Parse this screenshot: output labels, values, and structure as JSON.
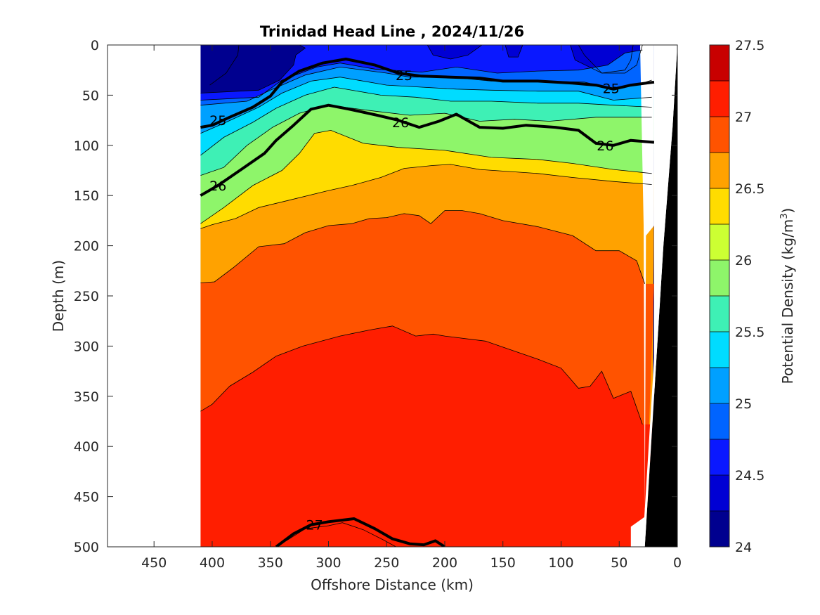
{
  "chart_data": {
    "type": "contour",
    "title": "Trinidad Head Line , 2024/11/26",
    "xlabel": "Offshore Distance (km)",
    "ylabel": "Depth (m)",
    "xlim": [
      490,
      0
    ],
    "ylim": [
      0,
      500
    ],
    "x_ticks": [
      "450",
      "400",
      "350",
      "300",
      "250",
      "200",
      "150",
      "100",
      "50",
      "0"
    ],
    "y_ticks": [
      "0",
      "50",
      "100",
      "150",
      "200",
      "250",
      "300",
      "350",
      "400",
      "450",
      "500"
    ],
    "colorbar": {
      "label_prefix": "Potential Density (kg/m",
      "label_sup": "3",
      "label_suffix": ")",
      "ticks": [
        "24",
        "24.5",
        "25",
        "25.5",
        "26",
        "26.5",
        "27",
        "27.5"
      ],
      "range": [
        24,
        27.5
      ],
      "levels": [
        {
          "from": 24.0,
          "to": 24.25,
          "color": "#00008f"
        },
        {
          "from": 24.25,
          "to": 24.5,
          "color": "#0000d4"
        },
        {
          "from": 24.5,
          "to": 24.75,
          "color": "#0a18ff"
        },
        {
          "from": 24.75,
          "to": 25.0,
          "color": "#0064ff"
        },
        {
          "from": 25.0,
          "to": 25.25,
          "color": "#00a0ff"
        },
        {
          "from": 25.25,
          "to": 25.5,
          "color": "#00dcff"
        },
        {
          "from": 25.5,
          "to": 25.75,
          "color": "#3ef0b5"
        },
        {
          "from": 25.75,
          "to": 26.0,
          "color": "#8ef56a"
        },
        {
          "from": 26.0,
          "to": 26.25,
          "color": "#ccff33"
        },
        {
          "from": 26.25,
          "to": 26.5,
          "color": "#ffdc00"
        },
        {
          "from": 26.5,
          "to": 26.75,
          "color": "#ffa200"
        },
        {
          "from": 26.75,
          "to": 27.0,
          "color": "#ff5300"
        },
        {
          "from": 27.0,
          "to": 27.25,
          "color": "#ff1e00"
        },
        {
          "from": 27.25,
          "to": 27.5,
          "color": "#c80000"
        }
      ]
    },
    "data_extent_km": [
      410,
      20
    ],
    "bottom_fill_color": "#000000",
    "contours": [
      {
        "level": 24.25,
        "points": [
          [
            402,
            40
          ],
          [
            388,
            28
          ],
          [
            378,
            10
          ],
          [
            377,
            0
          ]
        ]
      },
      {
        "level": 24.25,
        "points": [
          [
            85,
            0
          ],
          [
            80,
            10
          ],
          [
            65,
            28
          ],
          [
            45,
            25
          ],
          [
            40,
            15
          ],
          [
            38,
            0
          ]
        ]
      },
      {
        "level": 24.5,
        "points": [
          [
            410,
            48
          ],
          [
            360,
            45
          ],
          [
            342,
            35
          ],
          [
            330,
            20
          ],
          [
            328,
            10
          ],
          [
            320,
            3
          ],
          [
            325,
            0
          ]
        ]
      },
      {
        "level": 24.5,
        "points": [
          [
            215,
            0
          ],
          [
            210,
            10
          ],
          [
            195,
            14
          ],
          [
            180,
            10
          ],
          [
            168,
            0
          ]
        ]
      },
      {
        "level": 24.5,
        "points": [
          [
            148,
            0
          ],
          [
            145,
            12
          ],
          [
            137,
            12
          ],
          [
            133,
            0
          ]
        ]
      },
      {
        "level": 24.5,
        "points": [
          [
            92,
            0
          ],
          [
            88,
            15
          ],
          [
            65,
            28
          ],
          [
            45,
            28
          ],
          [
            35,
            20
          ],
          [
            30,
            0
          ]
        ]
      },
      {
        "level": 24.75,
        "points": [
          [
            410,
            55
          ],
          [
            360,
            52
          ],
          [
            340,
            35
          ],
          [
            310,
            22
          ],
          [
            290,
            18
          ],
          [
            260,
            24
          ],
          [
            220,
            27
          ],
          [
            190,
            22
          ],
          [
            155,
            28
          ],
          [
            120,
            26
          ],
          [
            85,
            25
          ],
          [
            60,
            20
          ],
          [
            45,
            8
          ],
          [
            30,
            5
          ]
        ]
      },
      {
        "level": 25.0,
        "points": [
          [
            410,
            60
          ],
          [
            370,
            56
          ],
          [
            350,
            45
          ],
          [
            320,
            30
          ],
          [
            290,
            22
          ],
          [
            250,
            28
          ],
          [
            230,
            32
          ],
          [
            195,
            32
          ],
          [
            160,
            36
          ],
          [
            120,
            36
          ],
          [
            80,
            37
          ],
          [
            55,
            44
          ],
          [
            30,
            38
          ],
          [
            22,
            35
          ]
        ]
      },
      {
        "level": 25.25,
        "points": [
          [
            410,
            88
          ],
          [
            390,
            78
          ],
          [
            360,
            62
          ],
          [
            340,
            48
          ],
          [
            315,
            36
          ],
          [
            290,
            32
          ],
          [
            250,
            40
          ],
          [
            220,
            42
          ],
          [
            190,
            44
          ],
          [
            160,
            45
          ],
          [
            120,
            46
          ],
          [
            85,
            46
          ],
          [
            55,
            55
          ],
          [
            22,
            52
          ]
        ]
      },
      {
        "level": 25.5,
        "points": [
          [
            410,
            110
          ],
          [
            390,
            92
          ],
          [
            365,
            77
          ],
          [
            345,
            63
          ],
          [
            320,
            50
          ],
          [
            295,
            42
          ],
          [
            255,
            50
          ],
          [
            225,
            52
          ],
          [
            195,
            56
          ],
          [
            160,
            56
          ],
          [
            120,
            58
          ],
          [
            85,
            58
          ],
          [
            55,
            60
          ],
          [
            22,
            62
          ]
        ]
      },
      {
        "level": 25.75,
        "points": [
          [
            410,
            130
          ],
          [
            390,
            122
          ],
          [
            370,
            100
          ],
          [
            348,
            82
          ],
          [
            325,
            68
          ],
          [
            300,
            60
          ],
          [
            260,
            66
          ],
          [
            230,
            70
          ],
          [
            200,
            68
          ],
          [
            170,
            76
          ],
          [
            140,
            74
          ],
          [
            110,
            76
          ],
          [
            70,
            72
          ],
          [
            22,
            72
          ]
        ]
      },
      {
        "level": 26.25,
        "points": [
          [
            410,
            178
          ],
          [
            390,
            162
          ],
          [
            365,
            140
          ],
          [
            340,
            125
          ],
          [
            325,
            108
          ],
          [
            312,
            88
          ],
          [
            298,
            85
          ],
          [
            270,
            98
          ],
          [
            240,
            102
          ],
          [
            200,
            105
          ],
          [
            160,
            112
          ],
          [
            120,
            114
          ],
          [
            90,
            118
          ],
          [
            55,
            124
          ],
          [
            22,
            128
          ]
        ]
      },
      {
        "level": 26.5,
        "points": [
          [
            410,
            183
          ],
          [
            400,
            179
          ],
          [
            380,
            173
          ],
          [
            360,
            162
          ],
          [
            335,
            155
          ],
          [
            300,
            145
          ],
          [
            280,
            140
          ],
          [
            255,
            132
          ],
          [
            235,
            123
          ],
          [
            210,
            120
          ],
          [
            195,
            119
          ],
          [
            170,
            124
          ],
          [
            120,
            128
          ],
          [
            90,
            132
          ],
          [
            55,
            136
          ],
          [
            22,
            139
          ]
        ]
      },
      {
        "level": 26.75,
        "points": [
          [
            410,
            237
          ],
          [
            398,
            236
          ],
          [
            382,
            222
          ],
          [
            360,
            201
          ],
          [
            338,
            198
          ],
          [
            320,
            187
          ],
          [
            300,
            180
          ],
          [
            280,
            178
          ],
          [
            265,
            173
          ],
          [
            250,
            172
          ],
          [
            235,
            168
          ],
          [
            222,
            170
          ],
          [
            212,
            178
          ],
          [
            200,
            165
          ],
          [
            185,
            165
          ],
          [
            170,
            168
          ],
          [
            150,
            175
          ],
          [
            120,
            181
          ],
          [
            90,
            190
          ],
          [
            70,
            205
          ],
          [
            50,
            205
          ],
          [
            35,
            215
          ],
          [
            28,
            238
          ]
        ]
      },
      {
        "level": 27.0,
        "points": [
          [
            410,
            365
          ],
          [
            400,
            358
          ],
          [
            385,
            340
          ],
          [
            365,
            326
          ],
          [
            345,
            310
          ],
          [
            322,
            300
          ],
          [
            290,
            290
          ],
          [
            265,
            284
          ],
          [
            245,
            280
          ],
          [
            225,
            290
          ],
          [
            210,
            288
          ],
          [
            200,
            290
          ],
          [
            165,
            295
          ],
          [
            145,
            303
          ],
          [
            120,
            313
          ],
          [
            100,
            322
          ],
          [
            85,
            342
          ],
          [
            75,
            340
          ],
          [
            65,
            325
          ],
          [
            55,
            352
          ],
          [
            40,
            345
          ],
          [
            30,
            378
          ]
        ]
      },
      {
        "level": 27.25,
        "points": [
          [
            345,
            500
          ],
          [
            335,
            493
          ],
          [
            320,
            482
          ],
          [
            300,
            479
          ],
          [
            288,
            476
          ],
          [
            270,
            483
          ],
          [
            253,
            493
          ],
          [
            242,
            500
          ]
        ]
      }
    ],
    "bold_contours": [
      {
        "level": 25,
        "label": "25",
        "points": [
          [
            410,
            82
          ],
          [
            400,
            80
          ],
          [
            385,
            72
          ],
          [
            365,
            62
          ],
          [
            350,
            51
          ],
          [
            340,
            37
          ],
          [
            325,
            26
          ],
          [
            305,
            18
          ],
          [
            285,
            14
          ],
          [
            260,
            20
          ],
          [
            240,
            28
          ],
          [
            220,
            31
          ],
          [
            195,
            32
          ],
          [
            170,
            33
          ],
          [
            150,
            36
          ],
          [
            120,
            36
          ],
          [
            90,
            38
          ],
          [
            70,
            40
          ],
          [
            55,
            44
          ],
          [
            40,
            40
          ],
          [
            20,
            37
          ]
        ],
        "label_positions": [
          [
            395,
            75
          ],
          [
            235,
            30
          ],
          [
            57,
            43
          ]
        ]
      },
      {
        "level": 26,
        "label": "26",
        "points": [
          [
            410,
            150
          ],
          [
            395,
            140
          ],
          [
            375,
            124
          ],
          [
            355,
            108
          ],
          [
            345,
            95
          ],
          [
            330,
            80
          ],
          [
            315,
            64
          ],
          [
            300,
            60
          ],
          [
            282,
            64
          ],
          [
            258,
            70
          ],
          [
            240,
            75
          ],
          [
            222,
            82
          ],
          [
            205,
            76
          ],
          [
            190,
            69
          ],
          [
            170,
            82
          ],
          [
            150,
            83
          ],
          [
            130,
            80
          ],
          [
            105,
            82
          ],
          [
            85,
            85
          ],
          [
            70,
            98
          ],
          [
            55,
            100
          ],
          [
            40,
            95
          ],
          [
            20,
            97
          ]
        ],
        "label_positions": [
          [
            395,
            140
          ],
          [
            238,
            77
          ],
          [
            62,
            100
          ]
        ]
      },
      {
        "level": 27,
        "label": "27",
        "points": [
          [
            345,
            500
          ],
          [
            330,
            487
          ],
          [
            315,
            478
          ],
          [
            300,
            475
          ],
          [
            278,
            472
          ],
          [
            260,
            482
          ],
          [
            245,
            492
          ],
          [
            230,
            497
          ],
          [
            218,
            498
          ],
          [
            208,
            494
          ],
          [
            200,
            500
          ]
        ],
        "label_positions": [
          [
            312,
            478
          ]
        ]
      }
    ],
    "seafloor": [
      [
        19,
        0
      ],
      [
        16,
        50
      ],
      [
        13,
        150
      ],
      [
        10,
        250
      ],
      [
        5,
        350
      ],
      [
        3,
        400
      ],
      [
        0,
        0
      ]
    ]
  }
}
